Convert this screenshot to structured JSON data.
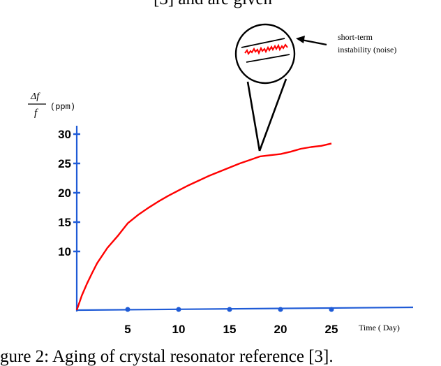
{
  "header_fragment": "[3] and are given",
  "chart_data": {
    "type": "line",
    "title": "",
    "ylabel_num": "Δf",
    "ylabel_den": "f",
    "ylabel_unit": "(ppm)",
    "xlabel": "Time ( Day)",
    "xticks": [
      5,
      10,
      15,
      20,
      25
    ],
    "yticks": [
      10,
      15,
      20,
      25,
      30
    ],
    "xlim": [
      0,
      33
    ],
    "ylim": [
      0,
      31
    ],
    "grid": false,
    "series": [
      {
        "color": "#ff0000",
        "x": [
          0,
          0.5,
          1,
          1.5,
          2,
          3,
          4,
          5,
          6,
          7,
          8,
          9,
          10,
          11,
          12,
          13,
          14,
          15,
          16,
          17,
          18,
          19,
          20,
          21,
          22,
          23,
          24,
          25
        ],
        "y": [
          0,
          2.5,
          4.5,
          6.3,
          8,
          10.6,
          12.6,
          14.8,
          16.2,
          17.4,
          18.5,
          19.5,
          20.4,
          21.3,
          22.1,
          22.9,
          23.6,
          24.3,
          25,
          25.6,
          26.2,
          26.4,
          26.6,
          27,
          27.5,
          27.8,
          28,
          28.4
        ]
      }
    ],
    "annotations": [
      {
        "text_line1": "short-term",
        "text_line2": "instability (noise)"
      }
    ]
  },
  "caption": "gure 2:  Aging of crystal resonator reference [3].",
  "colors": {
    "curve": "#ff0000",
    "axes": "#1f5bd6",
    "annotation": "#000000"
  }
}
